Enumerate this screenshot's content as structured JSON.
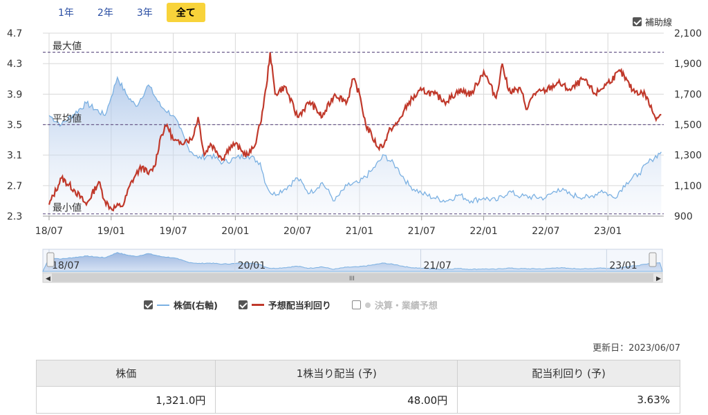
{
  "tabs": [
    {
      "label": "1年",
      "active": false
    },
    {
      "label": "2年",
      "active": false
    },
    {
      "label": "3年",
      "active": false
    },
    {
      "label": "全て",
      "active": true
    }
  ],
  "aux_lines_label": "補助線",
  "chart_data": {
    "type": "line",
    "left_axis": {
      "ticks": [
        4.7,
        4.3,
        3.9,
        3.5,
        3.1,
        2.7,
        2.3
      ],
      "range": [
        2.3,
        4.7
      ]
    },
    "right_axis": {
      "ticks": [
        "2,100",
        "1,900",
        "1,700",
        "1,500",
        "1,300",
        "1,100",
        "900"
      ],
      "range": [
        900,
        2100
      ]
    },
    "x_ticks": [
      "18/07",
      "19/01",
      "19/07",
      "20/01",
      "20/07",
      "21/01",
      "21/07",
      "22/01",
      "22/07",
      "23/01"
    ],
    "ref_lines": [
      {
        "label": "最大値",
        "value": 4.45
      },
      {
        "label": "平均値",
        "value": 3.5
      },
      {
        "label": "最小値",
        "value": 2.33
      }
    ],
    "series": [
      {
        "name": "株価(右軸)",
        "color": "#7ab0e2",
        "axis": "right",
        "points": [
          [
            2018.5,
            1560
          ],
          [
            2018.6,
            1500
          ],
          [
            2018.8,
            1640
          ],
          [
            2018.95,
            1560
          ],
          [
            2019.0,
            1680
          ],
          [
            2019.05,
            1810
          ],
          [
            2019.12,
            1700
          ],
          [
            2019.2,
            1620
          ],
          [
            2019.3,
            1760
          ],
          [
            2019.4,
            1620
          ],
          [
            2019.5,
            1560
          ],
          [
            2019.55,
            1480
          ],
          [
            2019.62,
            1350
          ],
          [
            2019.7,
            1280
          ],
          [
            2019.8,
            1300
          ],
          [
            2019.9,
            1250
          ],
          [
            2020.0,
            1280
          ],
          [
            2020.1,
            1300
          ],
          [
            2020.2,
            1250
          ],
          [
            2020.25,
            1100
          ],
          [
            2020.3,
            1040
          ],
          [
            2020.4,
            1080
          ],
          [
            2020.5,
            1150
          ],
          [
            2020.6,
            1050
          ],
          [
            2020.7,
            1120
          ],
          [
            2020.8,
            1000
          ],
          [
            2020.9,
            1100
          ],
          [
            2021.0,
            1120
          ],
          [
            2021.1,
            1200
          ],
          [
            2021.2,
            1300
          ],
          [
            2021.3,
            1220
          ],
          [
            2021.4,
            1100
          ],
          [
            2021.5,
            1050
          ],
          [
            2021.6,
            1020
          ],
          [
            2021.7,
            1000
          ],
          [
            2021.8,
            1040
          ],
          [
            2021.9,
            1000
          ],
          [
            2022.0,
            1020
          ],
          [
            2022.1,
            1000
          ],
          [
            2022.2,
            1060
          ],
          [
            2022.3,
            1030
          ],
          [
            2022.5,
            1020
          ],
          [
            2022.6,
            1080
          ],
          [
            2022.7,
            1040
          ],
          [
            2022.85,
            1020
          ],
          [
            2022.95,
            1070
          ],
          [
            2023.05,
            1020
          ],
          [
            2023.15,
            1120
          ],
          [
            2023.25,
            1180
          ],
          [
            2023.35,
            1270
          ],
          [
            2023.43,
            1321
          ]
        ]
      },
      {
        "name": "予想配当利回り",
        "color": "#c0392b",
        "axis": "left",
        "points": [
          [
            2018.5,
            2.45
          ],
          [
            2018.6,
            2.8
          ],
          [
            2018.7,
            2.65
          ],
          [
            2018.8,
            2.45
          ],
          [
            2018.9,
            2.75
          ],
          [
            2018.95,
            2.5
          ],
          [
            2019.0,
            2.4
          ],
          [
            2019.1,
            2.45
          ],
          [
            2019.15,
            2.7
          ],
          [
            2019.2,
            2.85
          ],
          [
            2019.25,
            2.95
          ],
          [
            2019.3,
            2.85
          ],
          [
            2019.35,
            2.95
          ],
          [
            2019.4,
            3.35
          ],
          [
            2019.45,
            3.5
          ],
          [
            2019.5,
            3.3
          ],
          [
            2019.55,
            3.25
          ],
          [
            2019.6,
            3.3
          ],
          [
            2019.65,
            3.3
          ],
          [
            2019.7,
            3.6
          ],
          [
            2019.75,
            3.1
          ],
          [
            2019.8,
            3.25
          ],
          [
            2019.85,
            3.15
          ],
          [
            2019.9,
            3.05
          ],
          [
            2019.95,
            3.2
          ],
          [
            2020.0,
            3.25
          ],
          [
            2020.05,
            3.15
          ],
          [
            2020.1,
            3.1
          ],
          [
            2020.15,
            3.2
          ],
          [
            2020.2,
            3.5
          ],
          [
            2020.25,
            4.0
          ],
          [
            2020.28,
            4.45
          ],
          [
            2020.32,
            3.9
          ],
          [
            2020.4,
            4.0
          ],
          [
            2020.5,
            3.6
          ],
          [
            2020.6,
            3.8
          ],
          [
            2020.7,
            3.6
          ],
          [
            2020.8,
            3.9
          ],
          [
            2020.9,
            3.8
          ],
          [
            2020.95,
            4.1
          ],
          [
            2021.0,
            3.9
          ],
          [
            2021.05,
            3.5
          ],
          [
            2021.1,
            3.35
          ],
          [
            2021.15,
            3.2
          ],
          [
            2021.2,
            3.25
          ],
          [
            2021.25,
            3.45
          ],
          [
            2021.3,
            3.5
          ],
          [
            2021.4,
            3.8
          ],
          [
            2021.5,
            3.95
          ],
          [
            2021.6,
            3.9
          ],
          [
            2021.7,
            3.8
          ],
          [
            2021.8,
            3.95
          ],
          [
            2021.9,
            3.9
          ],
          [
            2022.0,
            4.2
          ],
          [
            2022.1,
            3.85
          ],
          [
            2022.15,
            4.3
          ],
          [
            2022.2,
            3.95
          ],
          [
            2022.3,
            3.95
          ],
          [
            2022.35,
            3.7
          ],
          [
            2022.4,
            3.9
          ],
          [
            2022.5,
            3.95
          ],
          [
            2022.6,
            4.05
          ],
          [
            2022.7,
            3.95
          ],
          [
            2022.8,
            4.1
          ],
          [
            2022.9,
            3.9
          ],
          [
            2023.0,
            4.05
          ],
          [
            2023.1,
            4.2
          ],
          [
            2023.2,
            3.95
          ],
          [
            2023.3,
            3.9
          ],
          [
            2023.38,
            3.6
          ],
          [
            2023.43,
            3.63
          ]
        ]
      }
    ],
    "legend": [
      {
        "label": "株価(右軸)",
        "checked": true
      },
      {
        "label": "予想配当利回り",
        "checked": true
      },
      {
        "label": "決算・業績予想",
        "checked": false
      }
    ],
    "navigator_ticks": [
      "18/07",
      "20/01",
      "21/07",
      "23/01"
    ]
  },
  "updated": "更新日：2023/06/07",
  "table": {
    "headers": [
      "株価",
      "1株当り配当 (予)",
      "配当利回り (予)"
    ],
    "values": [
      "1,321.0円",
      "48.00円",
      "3.63%"
    ]
  }
}
